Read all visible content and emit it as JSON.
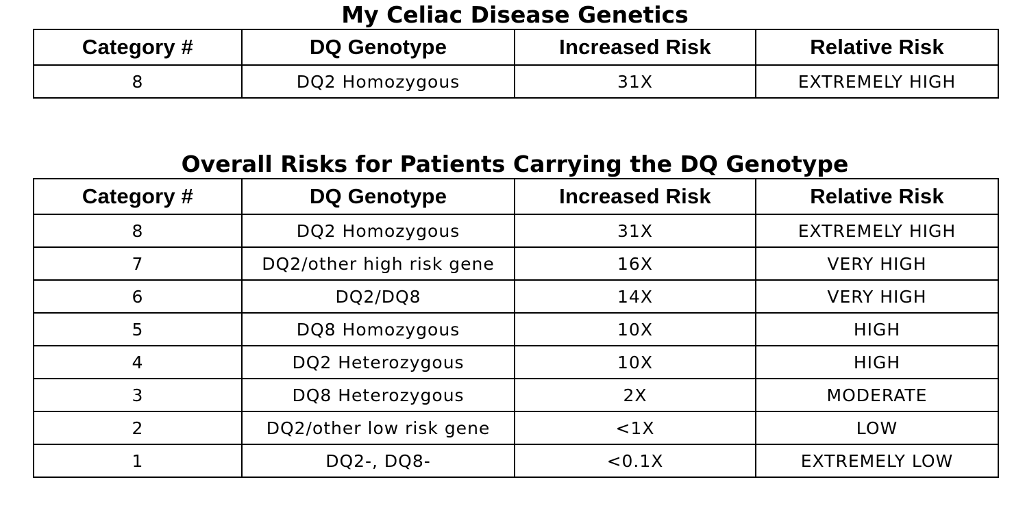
{
  "my_table": {
    "title": "My Celiac Disease Genetics",
    "headers": [
      "Category #",
      "DQ Genotype",
      "Increased Risk",
      "Relative Risk"
    ],
    "rows": [
      [
        "8",
        "DQ2  Homozygous",
        "31X",
        "EXTREMELY  HIGH"
      ]
    ]
  },
  "overall_table": {
    "title": "Overall Risks for Patients Carrying the DQ Genotype",
    "headers": [
      "Category #",
      "DQ Genotype",
      "Increased Risk",
      "Relative Risk"
    ],
    "rows": [
      [
        "8",
        "DQ2  Homozygous",
        "31X",
        "EXTREMELY  HIGH"
      ],
      [
        "7",
        "DQ2/other high risk gene",
        "16X",
        "VERY  HIGH"
      ],
      [
        "6",
        "DQ2/DQ8",
        "14X",
        "VERY  HIGH"
      ],
      [
        "5",
        "DQ8  Homozygous",
        "10X",
        "HIGH"
      ],
      [
        "4",
        "DQ2  Heterozygous",
        "10X",
        "HIGH"
      ],
      [
        "3",
        "DQ8  Heterozygous",
        "2X",
        "MODERATE"
      ],
      [
        "2",
        "DQ2/other low risk gene",
        "<1X",
        "LOW"
      ],
      [
        "1",
        "DQ2-, DQ8-",
        "<0.1X",
        "EXTREMELY  LOW"
      ]
    ]
  }
}
